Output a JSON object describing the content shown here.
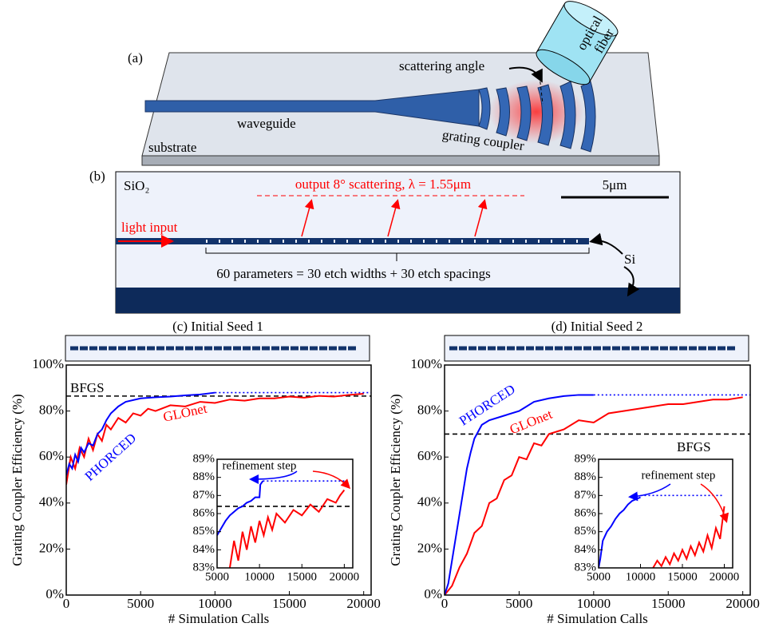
{
  "diagram_a": {
    "label": "(a)",
    "scattering_angle": "scattering angle",
    "fiber_line1": "optical",
    "fiber_line2": "fiber",
    "waveguide": "waveguide",
    "grating_coupler": "grating coupler",
    "substrate": "substrate"
  },
  "diagram_b": {
    "label": "(b)",
    "cladding": "SiO₂",
    "output": "output 8° scattering, λ = 1.55μm",
    "scale_bar": "5μm",
    "input": "light input",
    "silicon": "Si",
    "parameters": "60 parameters = 30 etch widths + 30 etch spacings"
  },
  "chart_data": [
    {
      "type": "line",
      "title": "(c) Initial Seed 1",
      "x_label": "# Simulation Calls",
      "y_label": "Grating Coupler Efficiency (%)",
      "xlim": [
        0,
        20500
      ],
      "ylim": [
        0,
        100
      ],
      "xticks": [
        0,
        5000,
        10000,
        15000,
        20000
      ],
      "yticks": [
        {
          "value": 0,
          "label": "0%"
        },
        {
          "value": 20,
          "label": "20%"
        },
        {
          "value": 40,
          "label": "40%"
        },
        {
          "value": 60,
          "label": "60%"
        },
        {
          "value": 80,
          "label": "80%"
        },
        {
          "value": 100,
          "label": "100%"
        }
      ],
      "series": [
        {
          "name": "BFGS",
          "color": "#000000",
          "line_style": "dashed",
          "x": [
            0,
            20500
          ],
          "values": [
            86.5,
            86.5
          ]
        },
        {
          "name": "GLOnet",
          "color": "#ff0000",
          "line_style": "solid",
          "x": [
            0,
            300,
            600,
            900,
            1200,
            1500,
            1800,
            2100,
            2400,
            2700,
            3000,
            3500,
            4000,
            4500,
            5000,
            5500,
            6000,
            7000,
            8000,
            9000,
            10000,
            11000,
            12000,
            13000,
            14000,
            15000,
            16000,
            17000,
            18000,
            19000,
            20000
          ],
          "values": [
            48,
            60,
            55,
            64,
            60,
            68,
            63,
            70,
            67,
            74,
            72,
            77,
            75,
            79,
            78,
            81,
            80,
            82.5,
            82,
            84,
            83.5,
            85,
            84.5,
            85.5,
            85.5,
            86.3,
            85.8,
            86.6,
            86.3,
            87,
            87.5
          ]
        },
        {
          "name": "PHORCED",
          "color": "#0000ff",
          "line_style": "solid",
          "x": [
            0,
            200,
            400,
            600,
            800,
            1000,
            1200,
            1500,
            1800,
            2100,
            2400,
            2700,
            3000,
            3500,
            4000,
            5000,
            6000,
            7000,
            8000,
            9000,
            10000
          ],
          "values": [
            52,
            57,
            55,
            61,
            58,
            64,
            62,
            66,
            65,
            70,
            72,
            76,
            79,
            82,
            84,
            85.5,
            86,
            86.3,
            86.8,
            87.2,
            88
          ]
        },
        {
          "color": "#0000ff",
          "line_style": "dotted",
          "x": [
            10000,
            20500
          ],
          "values": [
            88,
            88
          ]
        }
      ]
    },
    {
      "type": "line",
      "xlim": [
        5000,
        21000
      ],
      "ylim": [
        83,
        89
      ],
      "xticks": [
        5000,
        10000,
        15000,
        20000
      ],
      "yticks": [
        {
          "value": 83,
          "label": "83%"
        },
        {
          "value": 84,
          "label": "84%"
        },
        {
          "value": 85,
          "label": "85%"
        },
        {
          "value": 86,
          "label": "86%"
        },
        {
          "value": 87,
          "label": "87%"
        },
        {
          "value": 88,
          "label": "88%"
        },
        {
          "value": 89,
          "label": "89%"
        }
      ],
      "annotation": "refinement step",
      "series": [
        {
          "color": "#000000",
          "line_style": "dashed",
          "x": [
            5000,
            21000
          ],
          "values": [
            86.4,
            86.4
          ]
        },
        {
          "color": "#ff0000",
          "line_style": "solid",
          "x": [
            6500,
            7000,
            7500,
            8000,
            8500,
            9000,
            9500,
            10000,
            10500,
            11000,
            11500,
            12000,
            13000,
            14000,
            15000,
            16000,
            17000,
            18000,
            19000,
            19500,
            20000
          ],
          "values": [
            83,
            84.5,
            83.4,
            85,
            84,
            85.3,
            84.4,
            85.6,
            84.8,
            85.8,
            85.1,
            86,
            85.5,
            86.2,
            85.9,
            86.5,
            86.1,
            86.8,
            86.6,
            87,
            87.3
          ]
        },
        {
          "color": "#0000ff",
          "line_style": "solid",
          "x": [
            5000,
            5500,
            6000,
            6500,
            7000,
            7500,
            8000,
            8500,
            9000,
            9500,
            10000,
            10100,
            10400
          ],
          "values": [
            84.8,
            85.2,
            85.6,
            85.9,
            86.1,
            86.3,
            86.4,
            86.6,
            86.7,
            86.9,
            86.9,
            87.6,
            87.8
          ]
        },
        {
          "color": "#0000ff",
          "line_style": "dotted",
          "x": [
            10400,
            20000
          ],
          "values": [
            87.8,
            87.8
          ]
        }
      ]
    },
    {
      "type": "line",
      "title": "(d) Initial Seed 2",
      "x_label": "# Simulation Calls",
      "y_label": "Grating Coupler Efficiency (%)",
      "xlim": [
        0,
        20500
      ],
      "ylim": [
        0,
        100
      ],
      "xticks": [
        0,
        5000,
        10000,
        15000,
        20000
      ],
      "yticks": [
        {
          "value": 0,
          "label": "0%"
        },
        {
          "value": 20,
          "label": "20%"
        },
        {
          "value": 40,
          "label": "40%"
        },
        {
          "value": 60,
          "label": "60%"
        },
        {
          "value": 80,
          "label": "80%"
        },
        {
          "value": 100,
          "label": "100%"
        }
      ],
      "series": [
        {
          "name": "BFGS",
          "color": "#000000",
          "line_style": "dashed",
          "x": [
            0,
            20500
          ],
          "values": [
            70,
            70
          ]
        },
        {
          "name": "GLOnet",
          "color": "#ff0000",
          "line_style": "solid",
          "x": [
            0,
            500,
            1000,
            1500,
            2000,
            2500,
            3000,
            3500,
            4000,
            4500,
            5000,
            5500,
            6000,
            6500,
            7000,
            8000,
            9000,
            10000,
            11000,
            12000,
            13000,
            14000,
            15000,
            16000,
            17000,
            18000,
            19000,
            20000
          ],
          "values": [
            0,
            4,
            12,
            18,
            27,
            30,
            40,
            42,
            50,
            52,
            60,
            59,
            66,
            65,
            70,
            72,
            76,
            75,
            79,
            80,
            81,
            82,
            83,
            83,
            84,
            85,
            85,
            86
          ]
        },
        {
          "name": "PHORCED",
          "color": "#0000ff",
          "line_style": "solid",
          "x": [
            0,
            250,
            500,
            750,
            1000,
            1250,
            1500,
            1750,
            2000,
            2500,
            3000,
            4000,
            5000,
            5500,
            6000,
            7000,
            8000,
            9000,
            10000
          ],
          "values": [
            0,
            5,
            15,
            25,
            35,
            45,
            55,
            62,
            68,
            74,
            76,
            78,
            80,
            82,
            84,
            85.5,
            86.5,
            87,
            87
          ]
        },
        {
          "color": "#0000ff",
          "line_style": "dotted",
          "x": [
            10000,
            20500
          ],
          "values": [
            87,
            87
          ]
        }
      ]
    },
    {
      "type": "line",
      "xlim": [
        5000,
        21000
      ],
      "ylim": [
        83,
        89
      ],
      "xticks": [
        5000,
        10000,
        15000,
        20000
      ],
      "yticks": [
        {
          "value": 83,
          "label": "83%"
        },
        {
          "value": 84,
          "label": "84%"
        },
        {
          "value": 85,
          "label": "85%"
        },
        {
          "value": 86,
          "label": "86%"
        },
        {
          "value": 87,
          "label": "87%"
        },
        {
          "value": 88,
          "label": "88%"
        },
        {
          "value": 89,
          "label": "89%"
        }
      ],
      "annotation": "refinement step",
      "series": [
        {
          "color": "#ff0000",
          "line_style": "solid",
          "x": [
            11500,
            12000,
            12500,
            13000,
            13500,
            14000,
            14500,
            15000,
            15500,
            16000,
            16500,
            17000,
            17500,
            18000,
            18500,
            19000,
            19500,
            20000
          ],
          "values": [
            83,
            83.4,
            83.1,
            83.6,
            83.2,
            83.8,
            83.4,
            84,
            83.5,
            84.2,
            83.7,
            84.4,
            83.9,
            84.8,
            84.1,
            85.2,
            84.6,
            86.4
          ]
        },
        {
          "color": "#0000ff",
          "line_style": "solid",
          "x": [
            5000,
            5200,
            5500,
            6000,
            6500,
            7000,
            7500,
            8000,
            8500,
            9000,
            9500,
            10000
          ],
          "values": [
            83,
            83.5,
            84.5,
            85,
            85.3,
            85.7,
            86,
            86.2,
            86.5,
            86.7,
            86.8,
            86.9
          ]
        },
        {
          "color": "#0000ff",
          "line_style": "dotted",
          "x": [
            10000,
            20000
          ],
          "values": [
            87,
            87
          ]
        }
      ]
    }
  ]
}
